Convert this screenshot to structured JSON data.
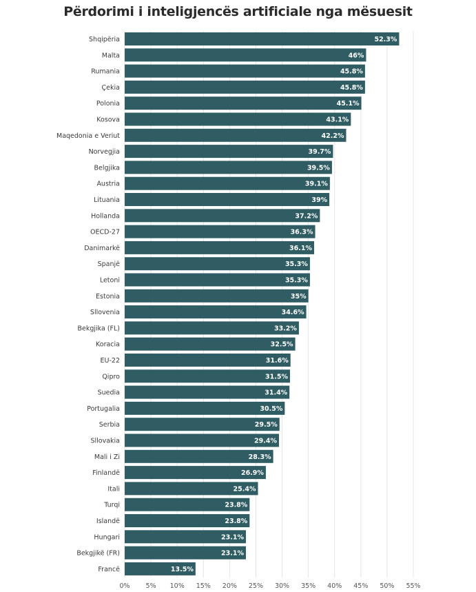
{
  "chart_data": {
    "type": "bar",
    "orientation": "horizontal",
    "title": "Përdorimi i inteligjencës artificiale nga mësuesit",
    "bar_color": "#2f5d63",
    "label_color": "#ffffff",
    "grid": true,
    "xlim": [
      0,
      55
    ],
    "x_ticks": [
      "0%",
      "5%",
      "10%",
      "15%",
      "20%",
      "25%",
      "30%",
      "35%",
      "40%",
      "45%",
      "50%",
      "55%"
    ],
    "categories": [
      "Shqipëria",
      "Malta",
      "Rumania",
      "Çekia",
      "Polonia",
      "Kosova",
      "Maqedonia e Veriut",
      "Norvegjia",
      "Belgjika",
      "Austria",
      "Lituania",
      "Hollanda",
      "OECD-27",
      "Danimarkë",
      "Spanjë",
      "Letoni",
      "Estonia",
      "Sllovenia",
      "Bekgjika (FL)",
      "Koracia",
      "EU-22",
      "Qipro",
      "Suedia",
      "Portugalia",
      "Serbia",
      "Sllovakia",
      "Mali i Zi",
      "Finlandë",
      "Itali",
      "Turqi",
      "Islandë",
      "Hungari",
      "Bekgjikë (FR)",
      "Francë"
    ],
    "values": [
      52.3,
      46,
      45.8,
      45.8,
      45.1,
      43.1,
      42.2,
      39.7,
      39.5,
      39.1,
      39,
      37.2,
      36.3,
      36.1,
      35.3,
      35.3,
      35,
      34.6,
      33.2,
      32.5,
      31.6,
      31.5,
      31.4,
      30.5,
      29.5,
      29.4,
      28.3,
      26.9,
      25.4,
      23.8,
      23.8,
      23.1,
      23.1,
      13.5
    ],
    "value_labels": [
      "52.3%",
      "46%",
      "45.8%",
      "45.8%",
      "45.1%",
      "43.1%",
      "42.2%",
      "39.7%",
      "39.5%",
      "39.1%",
      "39%",
      "37.2%",
      "36.3%",
      "36.1%",
      "35.3%",
      "35.3%",
      "35%",
      "34.6%",
      "33.2%",
      "32.5%",
      "31.6%",
      "31.5%",
      "31.4%",
      "30.5%",
      "29.5%",
      "29.4%",
      "28.3%",
      "26.9%",
      "25.4%",
      "23.8%",
      "23.8%",
      "23.1%",
      "23.1%",
      "13.5%"
    ]
  }
}
